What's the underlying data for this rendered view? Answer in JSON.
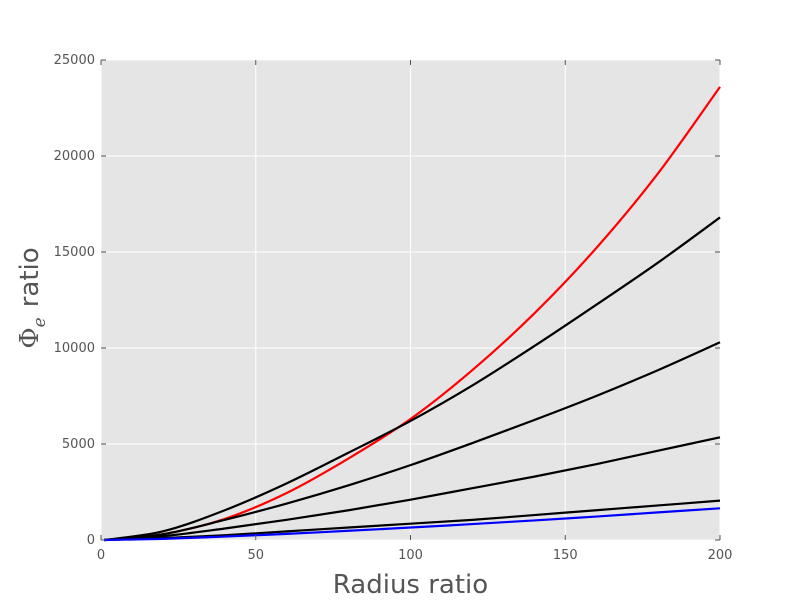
{
  "chart_data": {
    "type": "line",
    "title": "",
    "xlabel": "Radius ratio",
    "ylabel": {
      "main": "Φ",
      "subscript": "e",
      "suffix": "ratio"
    },
    "xlim": [
      0,
      200
    ],
    "ylim": [
      0,
      25000
    ],
    "xticks": [
      0,
      50,
      100,
      150,
      200
    ],
    "yticks": [
      0,
      5000,
      10000,
      15000,
      20000,
      25000
    ],
    "grid": true,
    "legend": "none",
    "x": [
      1,
      20,
      40,
      60,
      80,
      100,
      120,
      140,
      160,
      180,
      200
    ],
    "series": [
      {
        "color": "#ff0000",
        "values": [
          0,
          300,
          1100,
          2450,
          4250,
          6300,
          8850,
          11800,
          15200,
          19100,
          23600
        ]
      },
      {
        "color": "#000000",
        "values": [
          0,
          450,
          1550,
          2950,
          4550,
          6200,
          8050,
          10100,
          12250,
          14450,
          16800
        ]
      },
      {
        "color": "#000000",
        "values": [
          0,
          300,
          1050,
          1900,
          2850,
          3900,
          5050,
          6250,
          7500,
          8850,
          10300
        ]
      },
      {
        "color": "#000000",
        "values": [
          0,
          200,
          600,
          1050,
          1550,
          2100,
          2700,
          3300,
          3950,
          4650,
          5350
        ]
      },
      {
        "color": "#000000",
        "values": [
          0,
          100,
          250,
          450,
          650,
          850,
          1050,
          1300,
          1550,
          1800,
          2050
        ]
      },
      {
        "color": "#0000ff",
        "values": [
          0,
          60,
          180,
          320,
          480,
          650,
          830,
          1020,
          1220,
          1440,
          1650
        ]
      }
    ]
  }
}
